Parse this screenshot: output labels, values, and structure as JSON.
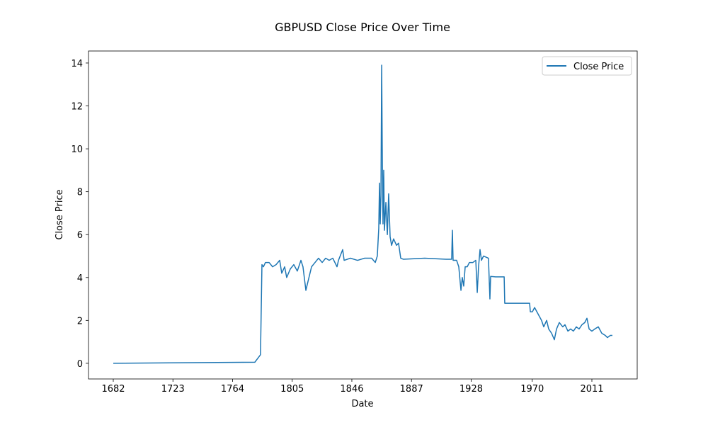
{
  "chart_data": {
    "type": "line",
    "title": "GBPUSD Close Price Over Time",
    "x_label": "Date",
    "y_label": "Close Price",
    "x": [
      1682,
      1779.3,
      1783.2,
      1784.2,
      1785.2,
      1786.6,
      1789.1,
      1791.5,
      1793.9,
      1796.4,
      1797.8,
      1799.8,
      1801.2,
      1803.7,
      1806.1,
      1808.5,
      1811.0,
      1812.4,
      1814.4,
      1815.8,
      1818.3,
      1820.7,
      1823.1,
      1825.6,
      1828.0,
      1830.4,
      1832.9,
      1835.8,
      1836.8,
      1839.7,
      1840.7,
      1845.0,
      1849.9,
      1854.8,
      1859.6,
      1862.1,
      1863.5,
      1864.5,
      1865.0,
      1865.5,
      1866.0,
      1866.5,
      1866.9,
      1867.4,
      1867.9,
      1868.4,
      1869.4,
      1870.4,
      1871.3,
      1872.3,
      1873.3,
      1874.7,
      1876.7,
      1878.1,
      1879.6,
      1881.5,
      1896.1,
      1910.7,
      1914.6,
      1915.1,
      1915.6,
      1918.0,
      1919.5,
      1921.0,
      1921.9,
      1922.9,
      1923.9,
      1925.3,
      1926.8,
      1929.2,
      1931.2,
      1932.2,
      1933.1,
      1934.1,
      1935.1,
      1936.5,
      1939.9,
      1940.9,
      1941.4,
      1944.8,
      1950.7,
      1951.1,
      1959.4,
      1968.2,
      1968.7,
      1970.1,
      1971.6,
      1974.0,
      1976.4,
      1977.9,
      1979.9,
      1981.3,
      1983.3,
      1985.2,
      1986.7,
      1988.6,
      1991.0,
      1992.5,
      1994.5,
      1996.4,
      1998.3,
      2000.3,
      2002.2,
      2004.2,
      2006.1,
      2007.6,
      2009.1,
      2011.0,
      2013.0,
      2015.4,
      2017.8,
      2020.2,
      2021.7,
      2023.7,
      2025.1
    ],
    "series": [
      {
        "name": "Close Price",
        "color": "#1f77b4",
        "values": [
          0,
          0.05,
          0.4,
          4.6,
          4.5,
          4.7,
          4.7,
          4.5,
          4.6,
          4.8,
          4.2,
          4.5,
          4.0,
          4.4,
          4.6,
          4.3,
          4.8,
          4.5,
          3.4,
          3.8,
          4.5,
          4.7,
          4.9,
          4.7,
          4.9,
          4.8,
          4.9,
          4.5,
          4.8,
          5.3,
          4.8,
          4.9,
          4.8,
          4.9,
          4.9,
          4.7,
          5.0,
          6.3,
          8.4,
          6.5,
          7.8,
          13.9,
          10,
          6.5,
          9,
          6.2,
          7.5,
          6.0,
          7.9,
          5.9,
          5.5,
          5.8,
          5.5,
          5.6,
          4.9,
          4.85,
          4.9,
          4.85,
          4.85,
          6.2,
          4.8,
          4.8,
          4.5,
          3.4,
          4.0,
          3.6,
          4.5,
          4.5,
          4.7,
          4.7,
          4.8,
          3.3,
          4.5,
          5.3,
          4.8,
          5.0,
          4.9,
          3.0,
          4.05,
          4.03,
          4.03,
          2.8,
          2.8,
          2.8,
          2.4,
          2.4,
          2.6,
          2.3,
          2.0,
          1.7,
          2.0,
          1.6,
          1.4,
          1.1,
          1.6,
          1.9,
          1.7,
          1.8,
          1.5,
          1.6,
          1.5,
          1.7,
          1.6,
          1.8,
          1.9,
          2.1,
          1.6,
          1.5,
          1.6,
          1.7,
          1.4,
          1.3,
          1.2,
          1.3,
          1.3
        ]
      }
    ],
    "xlim": [
      1664.97,
      2042.15
    ],
    "xticks": [
      1682,
      1723,
      1764,
      1805,
      1846,
      1887,
      1928,
      1970,
      2011
    ],
    "ylim": [
      -0.73,
      14.56
    ],
    "yticks": [
      0,
      2,
      4,
      6,
      8,
      10,
      12,
      14
    ],
    "legend": "upper right",
    "grid": false
  }
}
